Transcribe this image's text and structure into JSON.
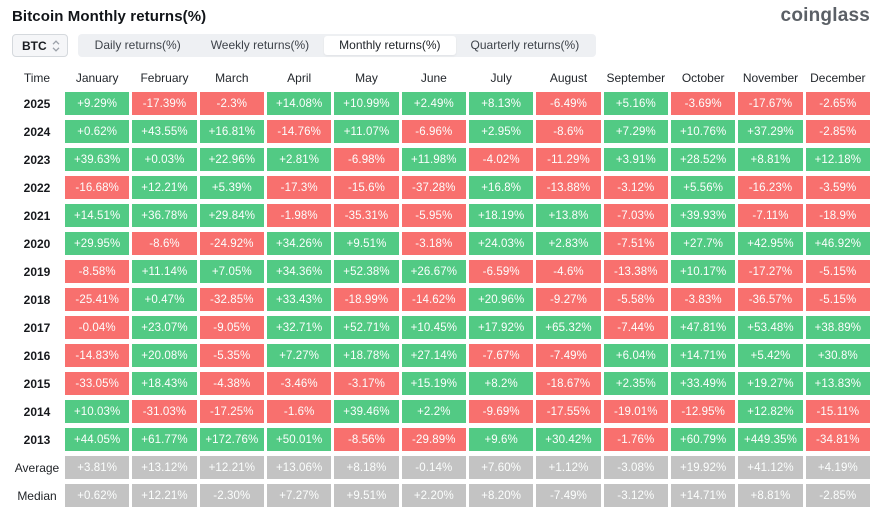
{
  "header": {
    "title": "Bitcoin Monthly returns(%)",
    "logo": "coinglass"
  },
  "controls": {
    "symbol": "BTC",
    "symbol_icon": "updown-arrows-icon",
    "tabs": [
      {
        "label": "Daily returns(%)",
        "active": false
      },
      {
        "label": "Weekly returns(%)",
        "active": false
      },
      {
        "label": "Monthly returns(%)",
        "active": true
      },
      {
        "label": "Quarterly returns(%)",
        "active": false
      }
    ]
  },
  "colors": {
    "positive": "#52ca84",
    "negative": "#f8706e",
    "neutral": "#c3c3c3"
  },
  "chart_data": {
    "type": "heatmap",
    "title": "Bitcoin Monthly returns(%)",
    "time_header": "Time",
    "months": [
      "January",
      "February",
      "March",
      "April",
      "May",
      "June",
      "July",
      "August",
      "September",
      "October",
      "November",
      "December"
    ],
    "rows": [
      {
        "label": "2025",
        "values": [
          "+9.29%",
          "-17.39%",
          "-2.3%",
          "+14.08%",
          "+10.99%",
          "+2.49%",
          "+8.13%",
          "-6.49%",
          "+5.16%",
          "-3.69%",
          "-17.67%",
          "-2.65%"
        ],
        "colors": "grrggggrgrrr"
      },
      {
        "label": "2024",
        "values": [
          "+0.62%",
          "+43.55%",
          "+16.81%",
          "-14.76%",
          "+11.07%",
          "-6.96%",
          "+2.95%",
          "-8.6%",
          "+7.29%",
          "+10.76%",
          "+37.29%",
          "-2.85%"
        ],
        "colors": "gggrgrgrgggr"
      },
      {
        "label": "2023",
        "values": [
          "+39.63%",
          "+0.03%",
          "+22.96%",
          "+2.81%",
          "-6.98%",
          "+11.98%",
          "-4.02%",
          "-11.29%",
          "+3.91%",
          "+28.52%",
          "+8.81%",
          "+12.18%"
        ],
        "colors": "ggggrgrrgggg"
      },
      {
        "label": "2022",
        "values": [
          "-16.68%",
          "+12.21%",
          "+5.39%",
          "-17.3%",
          "-15.6%",
          "-37.28%",
          "+16.8%",
          "-13.88%",
          "-3.12%",
          "+5.56%",
          "-16.23%",
          "-3.59%"
        ],
        "colors": "rggrrrgrrgrr"
      },
      {
        "label": "2021",
        "values": [
          "+14.51%",
          "+36.78%",
          "+29.84%",
          "-1.98%",
          "-35.31%",
          "-5.95%",
          "+18.19%",
          "+13.8%",
          "-7.03%",
          "+39.93%",
          "-7.11%",
          "-18.9%"
        ],
        "colors": "gggrrrggrgrr"
      },
      {
        "label": "2020",
        "values": [
          "+29.95%",
          "-8.6%",
          "-24.92%",
          "+34.26%",
          "+9.51%",
          "-3.18%",
          "+24.03%",
          "+2.83%",
          "-7.51%",
          "+27.7%",
          "+42.95%",
          "+46.92%"
        ],
        "colors": "grrggrggrggg"
      },
      {
        "label": "2019",
        "values": [
          "-8.58%",
          "+11.14%",
          "+7.05%",
          "+34.36%",
          "+52.38%",
          "+26.67%",
          "-6.59%",
          "-4.6%",
          "-13.38%",
          "+10.17%",
          "-17.27%",
          "-5.15%"
        ],
        "colors": "rgggggrrrgrr"
      },
      {
        "label": "2018",
        "values": [
          "-25.41%",
          "+0.47%",
          "-32.85%",
          "+33.43%",
          "-18.99%",
          "-14.62%",
          "+20.96%",
          "-9.27%",
          "-5.58%",
          "-3.83%",
          "-36.57%",
          "-5.15%"
        ],
        "colors": "rgrgrrgrrrrr"
      },
      {
        "label": "2017",
        "values": [
          "-0.04%",
          "+23.07%",
          "-9.05%",
          "+32.71%",
          "+52.71%",
          "+10.45%",
          "+17.92%",
          "+65.32%",
          "-7.44%",
          "+47.81%",
          "+53.48%",
          "+38.89%"
        ],
        "colors": "rgrgggggrggg"
      },
      {
        "label": "2016",
        "values": [
          "-14.83%",
          "+20.08%",
          "-5.35%",
          "+7.27%",
          "+18.78%",
          "+27.14%",
          "-7.67%",
          "-7.49%",
          "+6.04%",
          "+14.71%",
          "+5.42%",
          "+30.8%"
        ],
        "colors": "rgrgggrrgggg"
      },
      {
        "label": "2015",
        "values": [
          "-33.05%",
          "+18.43%",
          "-4.38%",
          "-3.46%",
          "-3.17%",
          "+15.19%",
          "+8.2%",
          "-18.67%",
          "+2.35%",
          "+33.49%",
          "+19.27%",
          "+13.83%"
        ],
        "colors": "rgrrrggrgggg"
      },
      {
        "label": "2014",
        "values": [
          "+10.03%",
          "-31.03%",
          "-17.25%",
          "-1.6%",
          "+39.46%",
          "+2.2%",
          "-9.69%",
          "-17.55%",
          "-19.01%",
          "-12.95%",
          "+12.82%",
          "-15.11%"
        ],
        "colors": "grrrggrrrrgr"
      },
      {
        "label": "2013",
        "values": [
          "+44.05%",
          "+61.77%",
          "+172.76%",
          "+50.01%",
          "-8.56%",
          "-29.89%",
          "+9.6%",
          "+30.42%",
          "-1.76%",
          "+60.79%",
          "+449.35%",
          "-34.81%"
        ],
        "colors": "ggggrrggrggr"
      },
      {
        "label": "Average",
        "values": [
          "+3.81%",
          "+13.12%",
          "+12.21%",
          "+13.06%",
          "+8.18%",
          "-0.14%",
          "+7.60%",
          "+1.12%",
          "-3.08%",
          "+19.92%",
          "+41.12%",
          "+4.19%"
        ],
        "colors": "nnnnnnnnnnnn"
      },
      {
        "label": "Median",
        "values": [
          "+0.62%",
          "+12.21%",
          "-2.30%",
          "+7.27%",
          "+9.51%",
          "+2.20%",
          "+8.20%",
          "-7.49%",
          "-3.12%",
          "+14.71%",
          "+8.81%",
          "-2.85%"
        ],
        "colors": "nnnnnnnnnnnn"
      }
    ],
    "legend": {
      "positive": "green",
      "negative": "red",
      "statistic_rows": "gray"
    }
  }
}
